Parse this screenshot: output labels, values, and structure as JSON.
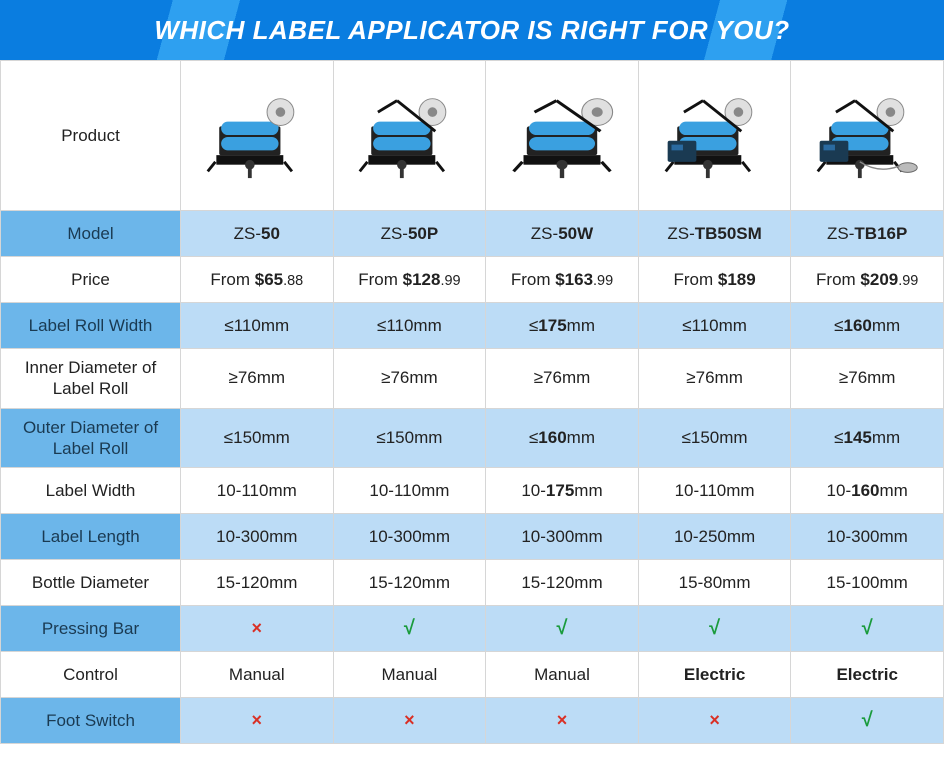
{
  "banner": {
    "title": "WHICH LABEL APPLICATOR IS RIGHT FOR YOU?"
  },
  "table": {
    "row_label_bg_blue": "#6cb6ea",
    "row_bg_blue": "#bcdcf6",
    "row_bg_white": "#ffffff",
    "border_color": "#d6d6d6",
    "banner_bg_primary": "#0a7de0",
    "banner_bg_accent": "#2ea0f0",
    "check_color": "#1a9b3c",
    "cross_color": "#d93025",
    "rows": [
      {
        "key": "product",
        "label": "Product",
        "blue": false,
        "type": "image"
      },
      {
        "key": "model",
        "label": "Model",
        "blue": true,
        "type": "model"
      },
      {
        "key": "price",
        "label": "Price",
        "blue": false,
        "type": "price"
      },
      {
        "key": "label_roll_width",
        "label": "Label Roll Width",
        "blue": true,
        "type": "dim"
      },
      {
        "key": "inner_diameter",
        "label": "Inner Diameter of Label Roll",
        "blue": false,
        "type": "dim"
      },
      {
        "key": "outer_diameter",
        "label": "Outer Diameter of Label Roll",
        "blue": true,
        "type": "dim"
      },
      {
        "key": "label_width",
        "label": "Label Width",
        "blue": false,
        "type": "dim"
      },
      {
        "key": "label_length",
        "label": "Label Length",
        "blue": true,
        "type": "dim"
      },
      {
        "key": "bottle_diameter",
        "label": "Bottle Diameter",
        "blue": false,
        "type": "dim"
      },
      {
        "key": "pressing_bar",
        "label": "Pressing Bar",
        "blue": true,
        "type": "bool"
      },
      {
        "key": "control",
        "label": "Control",
        "blue": false,
        "type": "text"
      },
      {
        "key": "foot_switch",
        "label": "Foot Switch",
        "blue": true,
        "type": "bool"
      }
    ],
    "products": [
      {
        "model_prefix": "ZS-",
        "model_suffix": "50",
        "price_prefix": "From ",
        "price_main": "$65",
        "price_cents": ".88",
        "label_roll_width": {
          "text": "≤110mm",
          "bold": false
        },
        "inner_diameter": {
          "text": "≥76mm",
          "bold": false
        },
        "outer_diameter": {
          "text": "≤150mm",
          "bold": false
        },
        "label_width": {
          "pre": "10-",
          "bold_part": "",
          "post": "110mm",
          "bold": false
        },
        "label_length": {
          "text": "10-300mm",
          "bold": false
        },
        "bottle_diameter": {
          "text": "15-120mm",
          "bold": false
        },
        "pressing_bar": false,
        "control": {
          "text": "Manual",
          "bold": false
        },
        "foot_switch": false,
        "img_variant": "basic"
      },
      {
        "model_prefix": "ZS-",
        "model_suffix": "50P",
        "price_prefix": "From ",
        "price_main": "$128",
        "price_cents": ".99",
        "label_roll_width": {
          "text": "≤110mm",
          "bold": false
        },
        "inner_diameter": {
          "text": "≥76mm",
          "bold": false
        },
        "outer_diameter": {
          "text": "≤150mm",
          "bold": false
        },
        "label_width": {
          "pre": "10-",
          "bold_part": "",
          "post": "110mm",
          "bold": false
        },
        "label_length": {
          "text": "10-300mm",
          "bold": false
        },
        "bottle_diameter": {
          "text": "15-120mm",
          "bold": false
        },
        "pressing_bar": true,
        "control": {
          "text": "Manual",
          "bold": false
        },
        "foot_switch": false,
        "img_variant": "press"
      },
      {
        "model_prefix": "ZS-",
        "model_suffix": "50W",
        "price_prefix": "From ",
        "price_main": "$163",
        "price_cents": ".99",
        "label_roll_width": {
          "text_pre": "≤",
          "text_bold": "175",
          "text_post": "mm",
          "bold": true
        },
        "inner_diameter": {
          "text": "≥76mm",
          "bold": false
        },
        "outer_diameter": {
          "text_pre": "≤",
          "text_bold": "160",
          "text_post": "mm",
          "bold": true
        },
        "label_width": {
          "pre": "10-",
          "bold_part": "175",
          "post": "mm",
          "bold": true
        },
        "label_length": {
          "text": "10-300mm",
          "bold": false
        },
        "bottle_diameter": {
          "text": "15-120mm",
          "bold": false
        },
        "pressing_bar": true,
        "control": {
          "text": "Manual",
          "bold": false
        },
        "foot_switch": false,
        "img_variant": "wide"
      },
      {
        "model_prefix": "ZS-",
        "model_suffix": "TB50SM",
        "price_prefix": "From ",
        "price_main": "$189",
        "price_cents": "",
        "label_roll_width": {
          "text": "≤110mm",
          "bold": false
        },
        "inner_diameter": {
          "text": "≥76mm",
          "bold": false
        },
        "outer_diameter": {
          "text": "≤150mm",
          "bold": false
        },
        "label_width": {
          "pre": "10-",
          "bold_part": "",
          "post": "110mm",
          "bold": false
        },
        "label_length": {
          "text": "10-250mm",
          "bold": false
        },
        "bottle_diameter": {
          "text": "15-80mm",
          "bold": false
        },
        "pressing_bar": true,
        "control": {
          "text": "Electric",
          "bold": true
        },
        "foot_switch": false,
        "img_variant": "electric"
      },
      {
        "model_prefix": "ZS-",
        "model_suffix": "TB16P",
        "price_prefix": "From ",
        "price_main": "$209",
        "price_cents": ".99",
        "label_roll_width": {
          "text_pre": "≤",
          "text_bold": "160",
          "text_post": "mm",
          "bold": true
        },
        "inner_diameter": {
          "text": "≥76mm",
          "bold": false
        },
        "outer_diameter": {
          "text_pre": "≤",
          "text_bold": "145",
          "text_post": "mm",
          "bold": true
        },
        "label_width": {
          "pre": "10-",
          "bold_part": "160",
          "post": "mm",
          "bold": true
        },
        "label_length": {
          "text": "10-300mm",
          "bold": false
        },
        "bottle_diameter": {
          "text": "15-100mm",
          "bold": false
        },
        "pressing_bar": true,
        "control": {
          "text": "Electric",
          "bold": true
        },
        "foot_switch": true,
        "img_variant": "electric_pedal"
      }
    ]
  }
}
